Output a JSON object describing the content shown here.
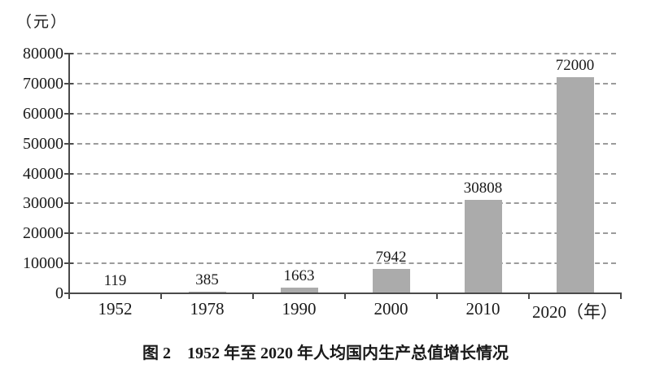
{
  "figure": {
    "unit_label": "（元）",
    "caption": "图 2　1952 年至 2020 年人均国内生产总值增长情况"
  },
  "chart_data": {
    "type": "bar",
    "title": "图 2 1952 年至 2020 年人均国内生产总值增长情况",
    "ylabel": "（元）",
    "xlabel": "（年）",
    "categories": [
      "1952",
      "1978",
      "1990",
      "2000",
      "2010",
      "2020（年）"
    ],
    "values": [
      119,
      385,
      1663,
      7942,
      30808,
      72000
    ],
    "bar_labels": [
      "119",
      "385",
      "1663",
      "7942",
      "30808",
      "72000"
    ],
    "ylim": [
      0,
      80000
    ],
    "ytick_step": 10000,
    "yticks": [
      0,
      10000,
      20000,
      30000,
      40000,
      50000,
      60000,
      70000,
      80000
    ],
    "grid": "horizontal-dashed",
    "legend": "none",
    "bar_color": "#ababab",
    "grid_color": "#9b9b9b",
    "axis_color": "#4a4a4a",
    "text_color": "#1a1a1a"
  }
}
